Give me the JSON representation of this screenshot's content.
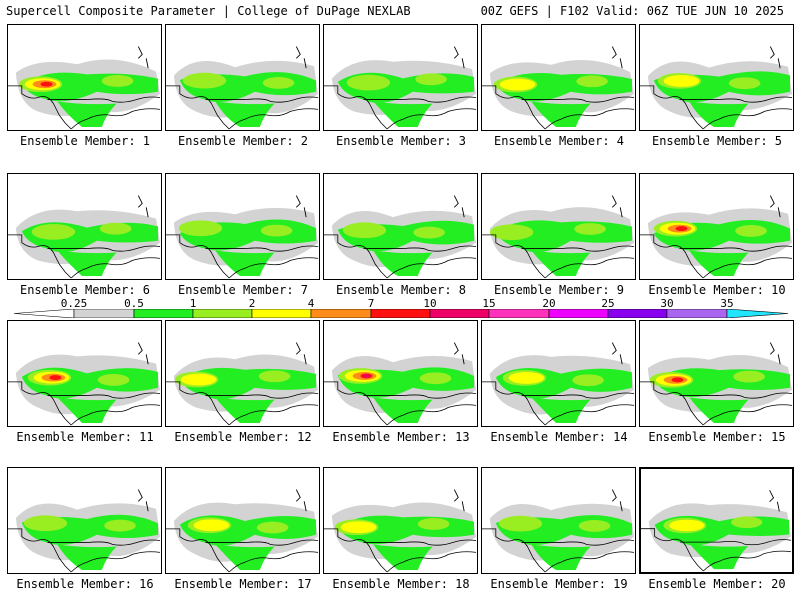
{
  "header": {
    "left_title": "Supercell Composite Parameter | College of DuPage NEXLAB",
    "right_title": "00Z GEFS | F102 Valid: 06Z TUE JUN 10 2025"
  },
  "panels": [
    {
      "label": "Ensemble Member: 1",
      "intensity": 3
    },
    {
      "label": "Ensemble Member: 2",
      "intensity": 1
    },
    {
      "label": "Ensemble Member: 3",
      "intensity": 1
    },
    {
      "label": "Ensemble Member: 4",
      "intensity": 2
    },
    {
      "label": "Ensemble Member: 5",
      "intensity": 2
    },
    {
      "label": "Ensemble Member: 6",
      "intensity": 1
    },
    {
      "label": "Ensemble Member: 7",
      "intensity": 1
    },
    {
      "label": "Ensemble Member: 8",
      "intensity": 1
    },
    {
      "label": "Ensemble Member: 9",
      "intensity": 1
    },
    {
      "label": "Ensemble Member: 10",
      "intensity": 3
    },
    {
      "label": "Ensemble Member: 11",
      "intensity": 3
    },
    {
      "label": "Ensemble Member: 12",
      "intensity": 2
    },
    {
      "label": "Ensemble Member: 13",
      "intensity": 4
    },
    {
      "label": "Ensemble Member: 14",
      "intensity": 2
    },
    {
      "label": "Ensemble Member: 15",
      "intensity": 3
    },
    {
      "label": "Ensemble Member: 16",
      "intensity": 1
    },
    {
      "label": "Ensemble Member: 17",
      "intensity": 2
    },
    {
      "label": "Ensemble Member: 18",
      "intensity": 2
    },
    {
      "label": "Ensemble Member: 19",
      "intensity": 1
    },
    {
      "label": "Ensemble Member: 20",
      "intensity": 2
    }
  ],
  "colorbar": {
    "ticks": [
      "0.25",
      "0.5",
      "1",
      "2",
      "4",
      "7",
      "10",
      "15",
      "20",
      "25",
      "30",
      "35"
    ],
    "colors": [
      "#d3d3d3",
      "#22ee22",
      "#99ee22",
      "#ffff00",
      "#ff8c1a",
      "#ff1111",
      "#ee0066",
      "#ff33bb",
      "#ee00ff",
      "#8800ee",
      "#aa66ee",
      "#22e5ff"
    ]
  },
  "field_colors": {
    "gray": "#d3d3d3",
    "green": "#22ee22",
    "lime": "#99ee22",
    "yellow": "#ffff00",
    "orange": "#ff8c1a",
    "red": "#ff1111",
    "magenta": "#ee0066"
  }
}
